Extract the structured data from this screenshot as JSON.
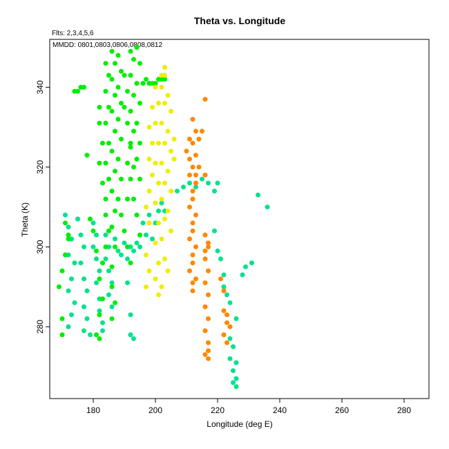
{
  "chart_data": {
    "type": "scatter",
    "title": "Theta vs. Longitude",
    "annotations": [
      "Flts: 2,3,4,5,6",
      "MMDD: 0801,0803,0806,0808,0812"
    ],
    "xlabel": "Longitude (deg E)",
    "ylabel": "Theta (K)",
    "xlim": [
      166,
      288
    ],
    "ylim": [
      262,
      352
    ],
    "x_ticks": [
      180,
      200,
      220,
      240,
      260,
      280
    ],
    "y_ticks": [
      280,
      300,
      320,
      340
    ],
    "grid": false,
    "legend": "none",
    "series": [
      {
        "color": "#00e28c",
        "points": [
          [
            171,
            308
          ],
          [
            172,
            305
          ],
          [
            173,
            302
          ],
          [
            172,
            298
          ],
          [
            174,
            296
          ],
          [
            173,
            292
          ],
          [
            172,
            289
          ],
          [
            174,
            286
          ],
          [
            173,
            283
          ],
          [
            172,
            280
          ],
          [
            175,
            307
          ],
          [
            176,
            303
          ],
          [
            177,
            300
          ],
          [
            176,
            296
          ],
          [
            177,
            292
          ],
          [
            178,
            289
          ],
          [
            177,
            285
          ],
          [
            178,
            282
          ],
          [
            177,
            279
          ],
          [
            179,
            278
          ],
          [
            180,
            306
          ],
          [
            181,
            303
          ],
          [
            180,
            300
          ],
          [
            181,
            297
          ],
          [
            182,
            294
          ],
          [
            181,
            291
          ],
          [
            182,
            287
          ],
          [
            182,
            284
          ],
          [
            183,
            281
          ],
          [
            183,
            279
          ],
          [
            184,
            303
          ],
          [
            185,
            300
          ],
          [
            184,
            297
          ],
          [
            185,
            294
          ],
          [
            186,
            291
          ],
          [
            185,
            288
          ],
          [
            186,
            285
          ],
          [
            187,
            302
          ],
          [
            188,
            299
          ],
          [
            189,
            298
          ],
          [
            190,
            301
          ],
          [
            191,
            297
          ],
          [
            192,
            300
          ],
          [
            193,
            299
          ],
          [
            194,
            301
          ],
          [
            195,
            300
          ],
          [
            191,
            291
          ],
          [
            192,
            283
          ],
          [
            192,
            278
          ],
          [
            193,
            277
          ],
          [
            196,
            306
          ],
          [
            197,
            303
          ],
          [
            198,
            308
          ],
          [
            199,
            302
          ],
          [
            200,
            306
          ],
          [
            201,
            309
          ],
          [
            202,
            311
          ],
          [
            203,
            309
          ],
          [
            207,
            314
          ],
          [
            209,
            315
          ],
          [
            211,
            316
          ],
          [
            213,
            315
          ],
          [
            215,
            317
          ],
          [
            217,
            316
          ],
          [
            219,
            314
          ],
          [
            220,
            316
          ],
          [
            219,
            304
          ],
          [
            220,
            299
          ],
          [
            221,
            297
          ],
          [
            222,
            293
          ],
          [
            222,
            290
          ],
          [
            223,
            288
          ],
          [
            224,
            286
          ],
          [
            226,
            282
          ],
          [
            224,
            277
          ],
          [
            225,
            275
          ],
          [
            224,
            272
          ],
          [
            226,
            271
          ],
          [
            225,
            269
          ],
          [
            226,
            267
          ],
          [
            225,
            266
          ],
          [
            226,
            265
          ],
          [
            228,
            293
          ],
          [
            229,
            295
          ],
          [
            231,
            296
          ],
          [
            233,
            313
          ],
          [
            236,
            310
          ]
        ]
      },
      {
        "color": "#00ee00",
        "points": [
          [
            170,
            278
          ],
          [
            170,
            282
          ],
          [
            169,
            290
          ],
          [
            170,
            294
          ],
          [
            171,
            298
          ],
          [
            172,
            302
          ],
          [
            171,
            306
          ],
          [
            172,
            303
          ],
          [
            174,
            339
          ],
          [
            175,
            339
          ],
          [
            176,
            340
          ],
          [
            177,
            340
          ],
          [
            178,
            323
          ],
          [
            179,
            307
          ],
          [
            180,
            304
          ],
          [
            181,
            299
          ],
          [
            181,
            278
          ],
          [
            182,
            277
          ],
          [
            182,
            283
          ],
          [
            183,
            287
          ],
          [
            182,
            292
          ],
          [
            183,
            296
          ],
          [
            184,
            300
          ],
          [
            185,
            304
          ],
          [
            182,
            335
          ],
          [
            182,
            331
          ],
          [
            183,
            326
          ],
          [
            182,
            321
          ],
          [
            183,
            316
          ],
          [
            184,
            312
          ],
          [
            184,
            308
          ],
          [
            185,
            304
          ],
          [
            184,
            346
          ],
          [
            185,
            343
          ],
          [
            184,
            339
          ],
          [
            185,
            335
          ],
          [
            184,
            331
          ],
          [
            185,
            326
          ],
          [
            184,
            321
          ],
          [
            185,
            317
          ],
          [
            186,
            349
          ],
          [
            187,
            346
          ],
          [
            186,
            342
          ],
          [
            187,
            338
          ],
          [
            186,
            334
          ],
          [
            187,
            329
          ],
          [
            186,
            324
          ],
          [
            187,
            319
          ],
          [
            186,
            314
          ],
          [
            187,
            309
          ],
          [
            186,
            305
          ],
          [
            187,
            300
          ],
          [
            186,
            295
          ],
          [
            186,
            290
          ],
          [
            187,
            286
          ],
          [
            186,
            282
          ],
          [
            188,
            348
          ],
          [
            189,
            344
          ],
          [
            188,
            340
          ],
          [
            189,
            336
          ],
          [
            188,
            332
          ],
          [
            189,
            327
          ],
          [
            188,
            322
          ],
          [
            189,
            317
          ],
          [
            190,
            343
          ],
          [
            191,
            339
          ],
          [
            190,
            335
          ],
          [
            191,
            331
          ],
          [
            192,
            326
          ],
          [
            191,
            321
          ],
          [
            192,
            317
          ],
          [
            191,
            312
          ],
          [
            192,
            349
          ],
          [
            193,
            347
          ],
          [
            192,
            343
          ],
          [
            193,
            338
          ],
          [
            192,
            334
          ],
          [
            193,
            329
          ],
          [
            192,
            325
          ],
          [
            193,
            320
          ],
          [
            194,
            350
          ],
          [
            195,
            346
          ],
          [
            194,
            341
          ],
          [
            195,
            336
          ],
          [
            194,
            331
          ],
          [
            195,
            326
          ],
          [
            194,
            322
          ],
          [
            195,
            317
          ],
          [
            196,
            341
          ],
          [
            197,
            342
          ],
          [
            198,
            341
          ],
          [
            199,
            341
          ],
          [
            200,
            341
          ],
          [
            201,
            342
          ],
          [
            202,
            342
          ],
          [
            203,
            342
          ],
          [
            188,
            312
          ],
          [
            189,
            308
          ],
          [
            190,
            304
          ],
          [
            191,
            300
          ],
          [
            192,
            296
          ],
          [
            193,
            312
          ],
          [
            194,
            308
          ],
          [
            195,
            303
          ]
        ]
      },
      {
        "color": "#eeee00",
        "points": [
          [
            197,
            298
          ],
          [
            198,
            294
          ],
          [
            197,
            290
          ],
          [
            198,
            306
          ],
          [
            197,
            310
          ],
          [
            198,
            314
          ],
          [
            199,
            318
          ],
          [
            198,
            322
          ],
          [
            199,
            326
          ],
          [
            198,
            330
          ],
          [
            199,
            335
          ],
          [
            200,
            340
          ],
          [
            201,
            336
          ],
          [
            200,
            331
          ],
          [
            201,
            326
          ],
          [
            200,
            321
          ],
          [
            201,
            316
          ],
          [
            200,
            311
          ],
          [
            201,
            306
          ],
          [
            200,
            301
          ],
          [
            201,
            296
          ],
          [
            200,
            292
          ],
          [
            202,
            290
          ],
          [
            201,
            288
          ],
          [
            202,
            343
          ],
          [
            203,
            345
          ],
          [
            202,
            340
          ],
          [
            203,
            336
          ],
          [
            202,
            331
          ],
          [
            203,
            326
          ],
          [
            202,
            321
          ],
          [
            203,
            316
          ],
          [
            202,
            312
          ],
          [
            203,
            307
          ],
          [
            202,
            302
          ],
          [
            203,
            297
          ],
          [
            204,
            294
          ],
          [
            203,
            343
          ],
          [
            204,
            338
          ],
          [
            205,
            334
          ],
          [
            204,
            329
          ],
          [
            205,
            324
          ],
          [
            204,
            319
          ],
          [
            205,
            314
          ],
          [
            204,
            309
          ],
          [
            205,
            304
          ],
          [
            206,
            327
          ],
          [
            206,
            322
          ]
        ]
      },
      {
        "color": "#ff8800",
        "points": [
          [
            210,
            324
          ],
          [
            211,
            327
          ],
          [
            211,
            322
          ],
          [
            211,
            318
          ],
          [
            212,
            314
          ],
          [
            211,
            310
          ],
          [
            212,
            306
          ],
          [
            211,
            302
          ],
          [
            212,
            298
          ],
          [
            211,
            294
          ],
          [
            212,
            291
          ],
          [
            212,
            289
          ],
          [
            213,
            292
          ],
          [
            212,
            296
          ],
          [
            213,
            300
          ],
          [
            212,
            304
          ],
          [
            213,
            308
          ],
          [
            212,
            312
          ],
          [
            213,
            316
          ],
          [
            212,
            320
          ],
          [
            213,
            323
          ],
          [
            212,
            326
          ],
          [
            213,
            329
          ],
          [
            212,
            332
          ],
          [
            214,
            327
          ],
          [
            215,
            329
          ],
          [
            216,
            337
          ],
          [
            216,
            318
          ],
          [
            214,
            320
          ],
          [
            213,
            318
          ],
          [
            216,
            303
          ],
          [
            217,
            300
          ],
          [
            216,
            297
          ],
          [
            217,
            294
          ],
          [
            216,
            291
          ],
          [
            217,
            288
          ],
          [
            216,
            285
          ],
          [
            217,
            282
          ],
          [
            216,
            279
          ],
          [
            217,
            276
          ],
          [
            216,
            273
          ],
          [
            217,
            272
          ],
          [
            217,
            274
          ],
          [
            217,
            301
          ],
          [
            216,
            299
          ],
          [
            221,
            292
          ],
          [
            222,
            289
          ],
          [
            222,
            284
          ],
          [
            223,
            281
          ],
          [
            222,
            278
          ],
          [
            223,
            276
          ],
          [
            224,
            280
          ],
          [
            223,
            283
          ]
        ]
      }
    ]
  }
}
